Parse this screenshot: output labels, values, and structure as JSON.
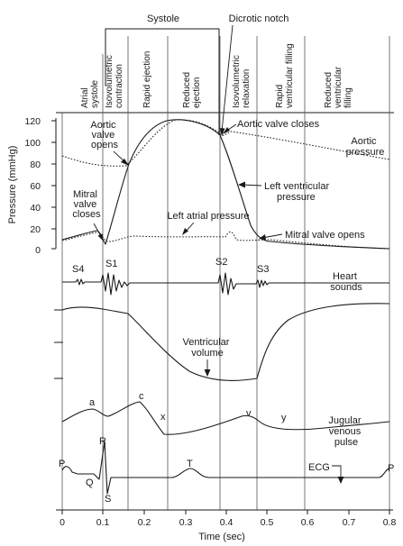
{
  "phases_header": {
    "systole": "Systole",
    "dicrotic_notch": "Dicrotic notch"
  },
  "phases": [
    {
      "lines": [
        "Atrial",
        "systole"
      ]
    },
    {
      "lines": [
        "Isovolumetric",
        "contraction"
      ]
    },
    {
      "lines": [
        "Rapid ejection"
      ]
    },
    {
      "lines": [
        "Reduced",
        "ejection"
      ]
    },
    {
      "lines": [
        "Isovolumetric",
        "relaxation"
      ]
    },
    {
      "lines": [
        "Rapid",
        "ventricular filling"
      ]
    },
    {
      "lines": [
        "Reduced",
        "ventricular",
        "filling"
      ]
    }
  ],
  "y_axis": {
    "label": "Pressure (mmHg)",
    "ticks": [
      "120",
      "100",
      "80",
      "60",
      "40",
      "20",
      "0"
    ]
  },
  "x_axis": {
    "label": "Time (sec)",
    "ticks": [
      "0",
      "0.1",
      "0.2",
      "0.3",
      "0.4",
      "0.5",
      "0.6",
      "0.7",
      "0.8"
    ]
  },
  "labels": {
    "aortic_valve_opens": [
      "Aortic",
      "valve",
      "opens"
    ],
    "aortic_valve_closes": "Aortic valve closes",
    "aortic_pressure": [
      "Aortic",
      "pressure"
    ],
    "lv_pressure": [
      "Left ventricular",
      "pressure"
    ],
    "mitral_valve_closes": [
      "Mitral",
      "valve",
      "closes"
    ],
    "left_atrial_pressure": "Left atrial pressure",
    "mitral_valve_opens": "Mitral valve opens",
    "s4": "S4",
    "s1": "S1",
    "s2": "S2",
    "s3": "S3",
    "heart_sounds": [
      "Heart",
      "sounds"
    ],
    "ventricular_volume": [
      "Ventricular",
      "volume"
    ],
    "wave_a": "a",
    "wave_c": "c",
    "wave_x": "x",
    "wave_v": "v",
    "wave_y": "y",
    "jugular_venous_pulse": [
      "Jugular",
      "venous",
      "pulse"
    ],
    "ecg_p_left": "P",
    "ecg_q": "Q",
    "ecg_r": "R",
    "ecg_s": "S",
    "ecg_t": "T",
    "ecg": "ECG",
    "ecg_p_right": "P"
  }
}
